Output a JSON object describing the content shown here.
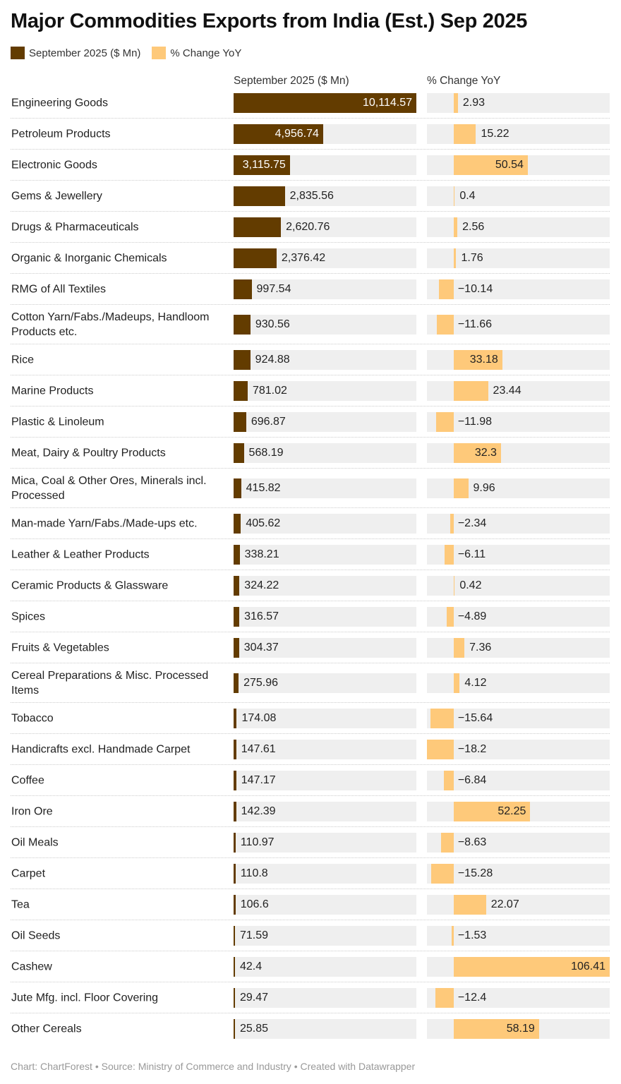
{
  "chart_data": {
    "type": "bar",
    "title": "Major Commodities Exports from India (Est.) Sep 2025",
    "legend": [
      "September 2025 ($ Mn)",
      "% Change YoY"
    ],
    "legend_placement": "top-left",
    "columns": [
      "September 2025 ($ Mn)",
      "% Change YoY"
    ],
    "colors": {
      "value": "#633c00",
      "change": "#fec97a",
      "background": "#efefef"
    },
    "categories": [
      "Engineering Goods",
      "Petroleum Products",
      "Electronic Goods",
      "Gems & Jewellery",
      "Drugs & Pharmaceuticals",
      "Organic & Inorganic Chemicals",
      "RMG of All Textiles",
      "Cotton Yarn/Fabs./Madeups, Handloom Products etc.",
      "Rice",
      "Marine Products",
      "Plastic & Linoleum",
      "Meat, Dairy & Poultry Products",
      "Mica, Coal & Other Ores, Minerals incl. Processed",
      "Man-made Yarn/Fabs./Made-ups etc.",
      "Leather & Leather Products",
      "Ceramic Products & Glassware",
      "Spices",
      "Fruits & Vegetables",
      "Cereal Preparations & Misc. Processed Items",
      "Tobacco",
      "Handicrafts excl. Handmade Carpet",
      "Coffee",
      "Iron Ore",
      "Oil Meals",
      "Carpet",
      "Tea",
      "Oil Seeds",
      "Cashew",
      "Jute Mfg. incl. Floor Covering",
      "Other Cereals"
    ],
    "series": [
      {
        "name": "September 2025 ($ Mn)",
        "values": [
          10114.57,
          4956.74,
          3115.75,
          2835.56,
          2620.76,
          2376.42,
          997.54,
          930.56,
          924.88,
          781.02,
          696.87,
          568.19,
          415.82,
          405.62,
          338.21,
          324.22,
          316.57,
          304.37,
          275.96,
          174.08,
          147.61,
          147.17,
          142.39,
          110.97,
          110.8,
          106.6,
          71.59,
          42.4,
          29.47,
          25.85
        ]
      },
      {
        "name": "% Change YoY",
        "values": [
          2.93,
          15.22,
          50.54,
          0.4,
          2.56,
          1.76,
          -10.14,
          -11.66,
          33.18,
          23.44,
          -11.98,
          32.3,
          9.96,
          -2.34,
          -6.11,
          0.42,
          -4.89,
          7.36,
          4.12,
          -15.64,
          -18.2,
          -6.84,
          52.25,
          -8.63,
          -15.28,
          22.07,
          -1.53,
          106.41,
          -12.4,
          58.19
        ]
      }
    ]
  },
  "footer": "Chart: ChartForest • Source: Ministry of Commerce and Industry • Created with Datawrapper"
}
